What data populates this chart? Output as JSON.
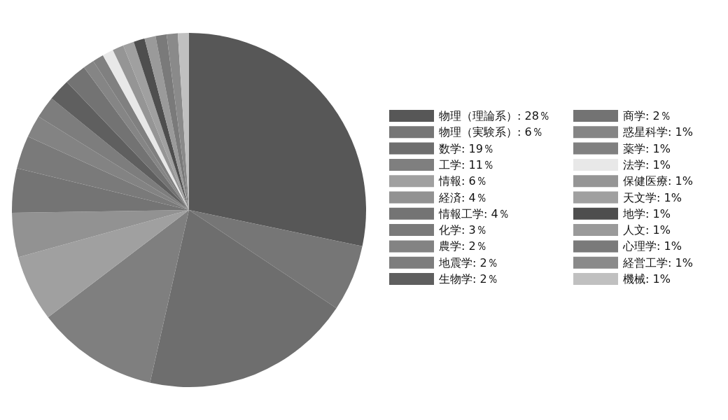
{
  "chart_data": {
    "type": "pie",
    "categories": [
      "物理（理論系）: 28％",
      "物理（実験系）: 6％",
      "数学: 19％",
      "工学: 11％",
      "情報: 6％",
      "経済: 4％",
      "情報工学: 4％",
      "化学: 3％",
      "農学: 2％",
      "地震学: 2％",
      "生物学: 2％",
      "商学: 2％",
      "惑星科学: 1%",
      "薬学: 1%",
      "法学: 1%",
      "保健医療: 1%",
      "天文学: 1%",
      "地学: 1%",
      "人文: 1%",
      "心理学: 1%",
      "経営工学: 1%",
      "機械: 1%"
    ],
    "values": [
      28,
      6,
      19,
      11,
      6,
      4,
      4,
      3,
      2,
      2,
      2,
      2,
      1,
      1,
      1,
      1,
      1,
      1,
      1,
      1,
      1,
      1
    ],
    "colors": [
      "#575757",
      "#767676",
      "#6e6e6e",
      "#7f7f7f",
      "#a0a0a0",
      "#929292",
      "#747474",
      "#7a7a7a",
      "#838383",
      "#7d7d7d",
      "#5f5f5f",
      "#737373",
      "#858585",
      "#808080",
      "#e8e8e8",
      "#959595",
      "#a0a0a0",
      "#4e4e4e",
      "#9a9a9a",
      "#7a7a7a",
      "#8a8a8a",
      "#c0c0c0"
    ],
    "legend": "right"
  }
}
